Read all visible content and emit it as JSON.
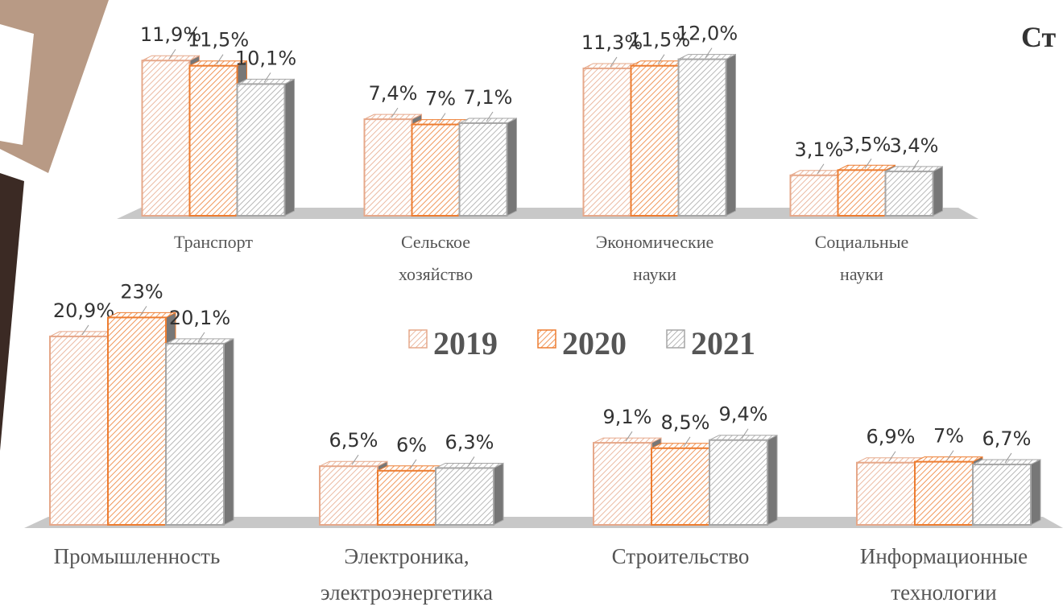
{
  "header": {
    "title": "Ст"
  },
  "chart_data": [
    {
      "type": "bar3d",
      "categories": [
        "Транспорт",
        "Сельское\nхозяйство",
        "Экономические\nнауки",
        "Социальные\nнауки"
      ],
      "series": [
        {
          "name": "2019",
          "color": "#e6a88a",
          "values": [
            11.9,
            7.4,
            11.3,
            3.1
          ],
          "value_labels": [
            "11,9%",
            "7,4%",
            "11,3%",
            "3,1%"
          ]
        },
        {
          "name": "2020",
          "color": "#ed7d31",
          "values": [
            11.5,
            7,
            11.5,
            3.5
          ],
          "value_labels": [
            "11,5%",
            "7%",
            "11,5%",
            "3,5%"
          ]
        },
        {
          "name": "2021",
          "color": "#a6a6a6",
          "values": [
            10.1,
            7.1,
            12.0,
            3.4
          ],
          "value_labels": [
            "10,1%",
            "7,1%",
            "12,0%",
            "3,4%"
          ]
        }
      ]
    },
    {
      "type": "bar3d",
      "categories": [
        "Промышленность",
        "Электроника,\nэлектроэнергетика",
        "Строительство",
        "Информационные\nтехнологии"
      ],
      "series": [
        {
          "color": "#e6a88a",
          "values": [
            20.9,
            6.5,
            9.1,
            6.9
          ],
          "value_labels": [
            "20,9%",
            "6,5%",
            "9,1%",
            "6,9%"
          ]
        },
        {
          "color": "#ed7d31",
          "values": [
            23,
            6,
            8.5,
            7
          ],
          "value_labels": [
            "23%",
            "6%",
            "8,5%",
            "7%"
          ]
        },
        {
          "color": "#a6a6a6",
          "values": [
            20.1,
            6.3,
            9.4,
            6.7
          ],
          "value_labels": [
            "20,1%",
            "6,3%",
            "9,4%",
            "6,7%"
          ]
        }
      ]
    }
  ]
}
